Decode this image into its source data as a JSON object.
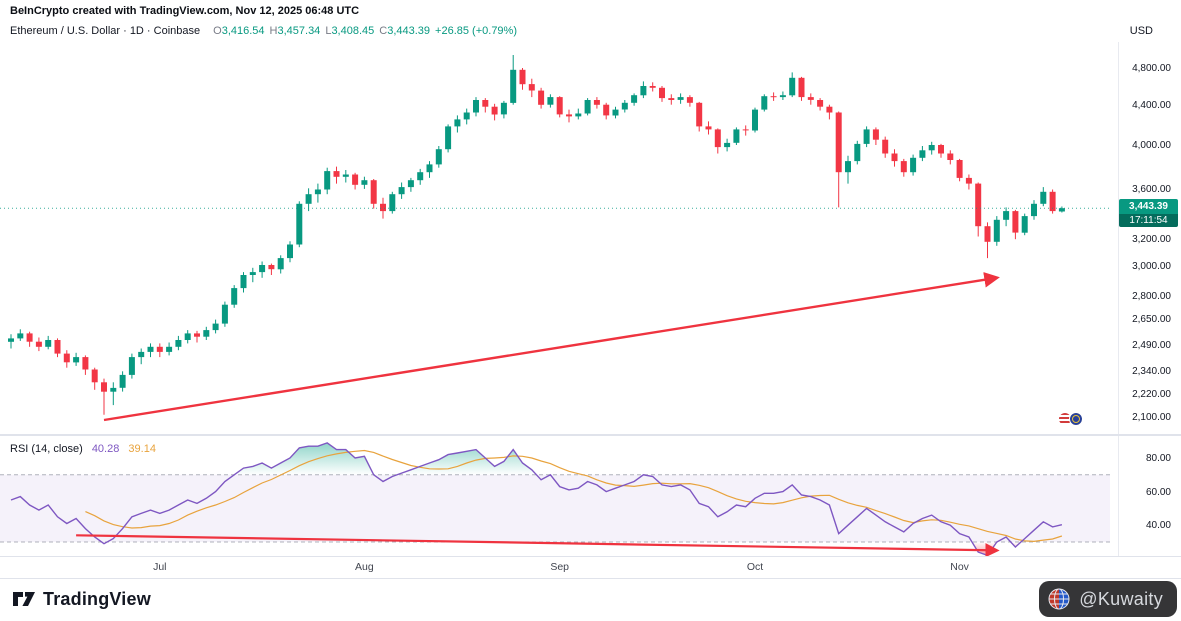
{
  "header": {
    "credit": "BeInCrypto created with TradingView.com, Nov 12, 2025 06:48 UTC"
  },
  "legend": {
    "title": "Ethereum / U.S. Dollar · 1D · Coinbase",
    "o_label": "O",
    "o": "3,416.54",
    "h_label": "H",
    "h": "3,457.34",
    "l_label": "L",
    "l": "3,408.45",
    "c_label": "C",
    "c": "3,443.39",
    "change": "+26.85 (+0.79%)",
    "currency": "USD"
  },
  "last_price_label": {
    "price": "3,443.39",
    "countdown": "17:11:54"
  },
  "rsi_legend": {
    "title": "RSI (14, close)",
    "value": "40.28",
    "ma_value": "39.14"
  },
  "price_axis_labels": [
    "4,800.00",
    "4,400.00",
    "4,000.00",
    "3,600.00",
    "3,200.00",
    "3,000.00",
    "2,800.00",
    "2,650.00",
    "2,490.00",
    "2,340.00",
    "2,220.00",
    "2,100.00"
  ],
  "rsi_axis_labels": [
    "80.00",
    "60.00",
    "40.00"
  ],
  "footer": {
    "brand": "TradingView",
    "watermark": "@Kuwaity"
  },
  "colors": {
    "up": "#089981",
    "down": "#f23645",
    "rsi": "#7e57c2",
    "rsi_ma": "#e8a33d",
    "arrow": "#ef333f",
    "badge": "#089981",
    "countdown_bg": "#046c5c",
    "band_fill": "rgba(126,87,194,0.08)",
    "band_line": "#8f93a0",
    "overbought_fill": "#22ab94",
    "oversold_fill": "#f23645"
  },
  "chart_data": [
    {
      "type": "candlestick",
      "name": "ETH/USD daily",
      "symbol": "Ethereum / U.S. Dollar",
      "interval": "1D",
      "exchange": "Coinbase",
      "scale": "log",
      "ylim": [
        2100,
        4950
      ],
      "y_ticks": [
        4800,
        4400,
        4000,
        3600,
        3200,
        3000,
        2800,
        2650,
        2490,
        2340,
        2220,
        2100
      ],
      "x_months": [
        {
          "label": "Jul",
          "index": 16
        },
        {
          "label": "Aug",
          "index": 38
        },
        {
          "label": "Sep",
          "index": 59
        },
        {
          "label": "Oct",
          "index": 80
        },
        {
          "label": "Nov",
          "index": 102
        }
      ],
      "last": {
        "open": 3416.54,
        "high": 3457.34,
        "low": 3408.45,
        "close": 3443.39,
        "change": 26.85,
        "change_pct": 0.79
      },
      "trendline": {
        "from": {
          "index": 10,
          "price": 2085
        },
        "to": {
          "index": 106,
          "price": 2920
        }
      },
      "candles": [
        [
          2510,
          2555,
          2470,
          2530
        ],
        [
          2530,
          2585,
          2515,
          2560
        ],
        [
          2560,
          2570,
          2480,
          2510
        ],
        [
          2510,
          2535,
          2455,
          2480
        ],
        [
          2480,
          2545,
          2465,
          2520
        ],
        [
          2520,
          2530,
          2420,
          2440
        ],
        [
          2440,
          2460,
          2360,
          2390
        ],
        [
          2390,
          2445,
          2370,
          2420
        ],
        [
          2420,
          2430,
          2320,
          2350
        ],
        [
          2350,
          2360,
          2240,
          2280
        ],
        [
          2280,
          2300,
          2111,
          2230
        ],
        [
          2230,
          2280,
          2160,
          2250
        ],
        [
          2250,
          2340,
          2230,
          2320
        ],
        [
          2320,
          2440,
          2300,
          2420
        ],
        [
          2420,
          2470,
          2380,
          2450
        ],
        [
          2450,
          2500,
          2420,
          2480
        ],
        [
          2480,
          2500,
          2420,
          2450
        ],
        [
          2450,
          2505,
          2430,
          2480
        ],
        [
          2480,
          2545,
          2460,
          2520
        ],
        [
          2520,
          2580,
          2500,
          2560
        ],
        [
          2560,
          2575,
          2505,
          2540
        ],
        [
          2540,
          2600,
          2520,
          2580
        ],
        [
          2580,
          2645,
          2560,
          2620
        ],
        [
          2620,
          2760,
          2600,
          2740
        ],
        [
          2740,
          2870,
          2720,
          2850
        ],
        [
          2850,
          2960,
          2820,
          2940
        ],
        [
          2940,
          2990,
          2890,
          2960
        ],
        [
          2960,
          3035,
          2920,
          3010
        ],
        [
          3010,
          3020,
          2940,
          2980
        ],
        [
          2980,
          3080,
          2950,
          3060
        ],
        [
          3060,
          3185,
          3030,
          3160
        ],
        [
          3160,
          3500,
          3140,
          3480
        ],
        [
          3480,
          3610,
          3420,
          3560
        ],
        [
          3560,
          3650,
          3490,
          3600
        ],
        [
          3600,
          3790,
          3560,
          3760
        ],
        [
          3760,
          3800,
          3650,
          3710
        ],
        [
          3710,
          3770,
          3660,
          3730
        ],
        [
          3730,
          3745,
          3600,
          3640
        ],
        [
          3640,
          3710,
          3605,
          3680
        ],
        [
          3680,
          3690,
          3440,
          3480
        ],
        [
          3480,
          3530,
          3360,
          3420
        ],
        [
          3420,
          3580,
          3400,
          3560
        ],
        [
          3560,
          3660,
          3520,
          3620
        ],
        [
          3620,
          3700,
          3580,
          3680
        ],
        [
          3680,
          3780,
          3640,
          3750
        ],
        [
          3750,
          3850,
          3700,
          3820
        ],
        [
          3820,
          3990,
          3790,
          3960
        ],
        [
          3960,
          4200,
          3930,
          4180
        ],
        [
          4180,
          4290,
          4120,
          4250
        ],
        [
          4250,
          4360,
          4200,
          4320
        ],
        [
          4320,
          4480,
          4280,
          4450
        ],
        [
          4450,
          4470,
          4320,
          4380
        ],
        [
          4380,
          4410,
          4240,
          4300
        ],
        [
          4300,
          4440,
          4260,
          4420
        ],
        [
          4420,
          4950,
          4400,
          4780
        ],
        [
          4780,
          4800,
          4560,
          4620
        ],
        [
          4620,
          4680,
          4480,
          4550
        ],
        [
          4550,
          4580,
          4360,
          4400
        ],
        [
          4400,
          4510,
          4370,
          4480
        ],
        [
          4480,
          4490,
          4270,
          4300
        ],
        [
          4300,
          4350,
          4220,
          4280
        ],
        [
          4280,
          4360,
          4250,
          4310
        ],
        [
          4310,
          4470,
          4290,
          4450
        ],
        [
          4450,
          4480,
          4360,
          4400
        ],
        [
          4400,
          4420,
          4250,
          4290
        ],
        [
          4290,
          4380,
          4260,
          4350
        ],
        [
          4350,
          4450,
          4320,
          4420
        ],
        [
          4420,
          4520,
          4390,
          4500
        ],
        [
          4500,
          4650,
          4470,
          4600
        ],
        [
          4600,
          4640,
          4540,
          4580
        ],
        [
          4580,
          4600,
          4430,
          4470
        ],
        [
          4470,
          4510,
          4400,
          4450
        ],
        [
          4450,
          4520,
          4410,
          4480
        ],
        [
          4480,
          4500,
          4380,
          4420
        ],
        [
          4420,
          4430,
          4130,
          4180
        ],
        [
          4180,
          4230,
          4100,
          4150
        ],
        [
          4150,
          4160,
          3920,
          3980
        ],
        [
          3980,
          4060,
          3940,
          4020
        ],
        [
          4020,
          4170,
          4000,
          4150
        ],
        [
          4150,
          4190,
          4090,
          4140
        ],
        [
          4140,
          4370,
          4120,
          4350
        ],
        [
          4350,
          4510,
          4330,
          4490
        ],
        [
          4490,
          4530,
          4440,
          4480
        ],
        [
          4480,
          4540,
          4450,
          4500
        ],
        [
          4500,
          4750,
          4480,
          4690
        ],
        [
          4690,
          4700,
          4440,
          4480
        ],
        [
          4480,
          4520,
          4400,
          4450
        ],
        [
          4450,
          4470,
          4340,
          4380
        ],
        [
          4380,
          4400,
          4250,
          4320
        ],
        [
          4320,
          4330,
          3450,
          3750
        ],
        [
          3750,
          3900,
          3650,
          3850
        ],
        [
          3850,
          4040,
          3820,
          4010
        ],
        [
          4010,
          4180,
          3980,
          4150
        ],
        [
          4150,
          4170,
          4000,
          4050
        ],
        [
          4050,
          4080,
          3880,
          3920
        ],
        [
          3920,
          3960,
          3800,
          3850
        ],
        [
          3850,
          3870,
          3710,
          3750
        ],
        [
          3750,
          3910,
          3720,
          3880
        ],
        [
          3880,
          3990,
          3850,
          3950
        ],
        [
          3950,
          4030,
          3910,
          4000
        ],
        [
          4000,
          4010,
          3880,
          3920
        ],
        [
          3920,
          3950,
          3820,
          3860
        ],
        [
          3860,
          3870,
          3670,
          3700
        ],
        [
          3700,
          3730,
          3600,
          3650
        ],
        [
          3650,
          3660,
          3220,
          3300
        ],
        [
          3300,
          3330,
          3060,
          3180
        ],
        [
          3180,
          3380,
          3150,
          3350
        ],
        [
          3350,
          3450,
          3300,
          3420
        ],
        [
          3420,
          3430,
          3200,
          3250
        ],
        [
          3250,
          3400,
          3230,
          3380
        ],
        [
          3380,
          3510,
          3350,
          3480
        ],
        [
          3480,
          3620,
          3460,
          3580
        ],
        [
          3580,
          3600,
          3400,
          3420
        ],
        [
          3416.54,
          3457.34,
          3408.45,
          3443.39
        ]
      ]
    },
    {
      "type": "line",
      "name": "RSI",
      "params": "14, close",
      "value": 40.28,
      "ma_value": 39.14,
      "ma_period": 9,
      "upper_band": 70,
      "lower_band": 30,
      "ylim": [
        20,
        92
      ],
      "y_ticks": [
        80,
        60,
        40
      ],
      "trendline": {
        "from": {
          "index": 7,
          "value": 34
        },
        "to": {
          "index": 106,
          "value": 25
        }
      },
      "values": [
        55,
        57,
        52,
        49,
        52,
        45,
        41,
        44,
        38,
        33,
        29,
        32,
        38,
        45,
        47,
        49,
        47,
        49,
        52,
        55,
        53,
        56,
        60,
        66,
        70,
        74,
        75,
        77,
        74,
        77,
        80,
        86,
        87,
        87,
        89,
        85,
        85,
        80,
        81,
        70,
        66,
        69,
        71,
        73,
        75,
        77,
        79,
        82,
        83,
        84,
        85,
        80,
        75,
        78,
        85,
        77,
        73,
        67,
        70,
        63,
        61,
        62,
        66,
        64,
        60,
        62,
        64,
        66,
        70,
        69,
        64,
        63,
        64,
        61,
        53,
        51,
        45,
        48,
        52,
        51,
        56,
        59,
        59,
        60,
        64,
        58,
        57,
        55,
        52,
        35,
        40,
        45,
        50,
        46,
        42,
        39,
        36,
        41,
        44,
        46,
        42,
        40,
        35,
        33,
        24,
        22,
        30,
        33,
        27,
        32,
        37,
        42,
        39,
        40.28
      ]
    }
  ]
}
